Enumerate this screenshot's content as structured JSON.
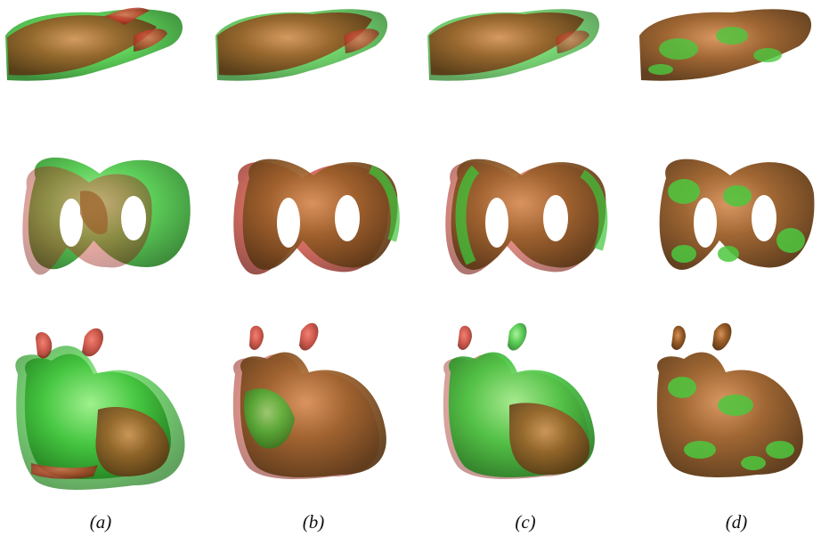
{
  "figure": {
    "columns": [
      {
        "caption": "(a)"
      },
      {
        "caption": "(b)"
      },
      {
        "caption": "(c)"
      },
      {
        "caption": "(d)"
      }
    ],
    "rows": [
      {
        "subject": "hand"
      },
      {
        "subject": "double-torus"
      },
      {
        "subject": "bunny"
      }
    ],
    "colors": {
      "red_mesh": "#c23a2a",
      "green_mesh": "#3fc43a",
      "overlap_brown": "#8e5a24",
      "highlight": "#e8a070",
      "background": "#ffffff"
    }
  }
}
